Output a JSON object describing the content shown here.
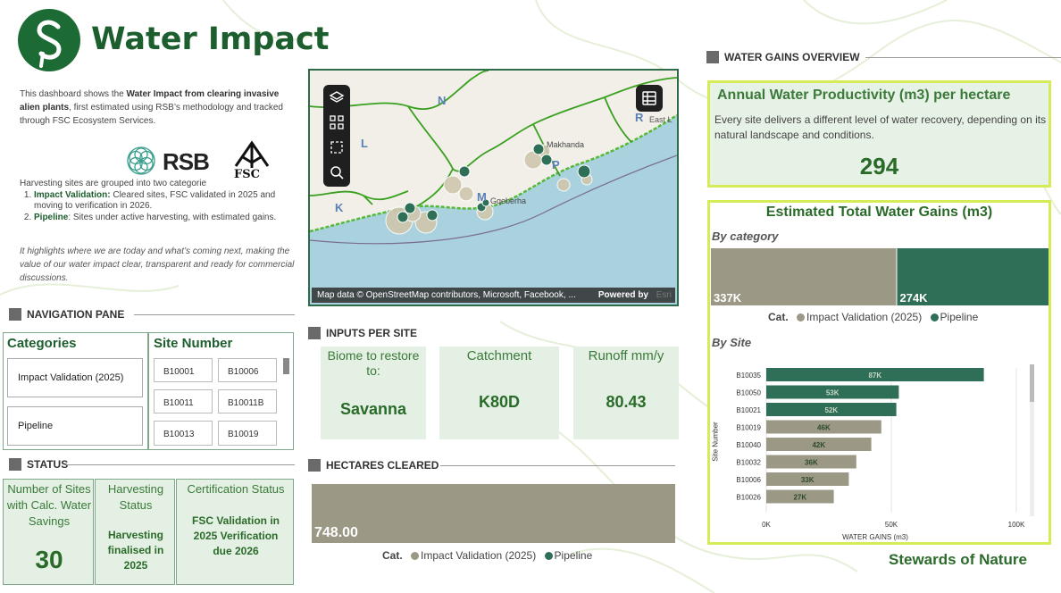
{
  "header": {
    "title": "Water Impact",
    "logo_icon": "leaf-s-logo-icon"
  },
  "intro": {
    "p1_a": "This dashboard shows the ",
    "p1_b": "Water Impact from clearing invasive alien plants",
    "p1_c": ", first estimated using RSB’s methodology and tracked through FSC Ecosystem Services.",
    "rsb_label": "RSB",
    "fsc_label": "FSC",
    "harvest_intro": "Harvesting sites are grouped into two categorie",
    "item1_bold": "Impact Validation:",
    "item1_text": " Cleared sites, FSC validated in 2025 and moving to verification in 2026.",
    "item2_bold": "Pipeline",
    "item2_text": ": Sites under active harvesting, with estimated gains.",
    "closing": "It highlights where we are today and what’s coming next, making the value of our water impact clear, transparent and ready for commercial discussions."
  },
  "nav": {
    "section_title": "NAVIGATION PANE",
    "categories_title": "Categories",
    "categories": [
      "Impact Validation (2025)",
      "Pipeline"
    ],
    "sites_title": "Site Number",
    "sites": [
      "B10001",
      "B10006",
      "B10011",
      "B10011B",
      "B10013",
      "B10019"
    ]
  },
  "status": {
    "section_title": "STATUS",
    "card1_label": "Number of Sites with Calc. Water Savings",
    "card1_value": "30",
    "card2_label": "Harvesting Status",
    "card2_value": "Harvesting finalised in 2025",
    "card3_label": "Certification Status",
    "card3_value": "FSC Validation in 2025 Verification due 2026"
  },
  "map": {
    "attribution": "Map data © OpenStreetMap contributors, Microsoft, Facebook, ...",
    "powered_by": "Powered by",
    "esri": "Esri",
    "place_labels": [
      "N",
      "L",
      "K",
      "M",
      "P",
      "R",
      "East L",
      "Makhanda",
      "Gqeberha"
    ]
  },
  "inputs": {
    "section_title": "INPUTS PER SITE",
    "biome_label": "Biome to restore to:",
    "biome_value": "Savanna",
    "catchment_label": "Catchment",
    "catchment_value": "K80D",
    "runoff_label": "Runoff mm/y",
    "runoff_value": "80.43"
  },
  "hectares": {
    "section_title": "HECTARES CLEARED",
    "value": "748.00",
    "legend_cat": "Cat.",
    "legend_items": [
      "Impact Validation (2025)",
      "Pipeline"
    ]
  },
  "water_gains": {
    "section_title": "WATER GAINS OVERVIEW",
    "productivity_title": "Annual Water Productivity (m3) per hectare",
    "productivity_desc": "Every site delivers a different level of water recovery, depending on its natural landscape and conditions.",
    "productivity_value": "294",
    "total_title": "Estimated Total Water Gains (m3)",
    "by_category": "By category",
    "by_site": "By Site",
    "legend_cat": "Cat.",
    "legend_items": [
      "Impact Validation (2025)",
      "Pipeline"
    ],
    "y_axis_title": "Site Number",
    "x_axis_title": "WATER GAINS (m3)"
  },
  "colors": {
    "impact_validation": "#9c9886",
    "pipeline": "#2f6f58",
    "accent_green": "#1c5e2e",
    "lime": "#d6ec57"
  },
  "footer": {
    "brand": "Stewards of Nature"
  },
  "chart_data": [
    {
      "type": "bar",
      "title": "By category",
      "categories": [
        "Impact Validation (2025)",
        "Pipeline"
      ],
      "values": [
        337000,
        274000
      ],
      "data_labels": [
        "337K",
        "274K"
      ]
    },
    {
      "type": "bar",
      "title": "By Site",
      "orientation": "horizontal",
      "categories": [
        "B10035",
        "B10050",
        "B10021",
        "B10019",
        "B10040",
        "B10032",
        "B10006",
        "B10026"
      ],
      "values": [
        87000,
        53000,
        52000,
        46000,
        42000,
        36000,
        33000,
        27000
      ],
      "data_labels": [
        "87K",
        "53K",
        "52K",
        "46K",
        "42K",
        "36K",
        "33K",
        "27K"
      ],
      "series_category": [
        "Pipeline",
        "Pipeline",
        "Pipeline",
        "Impact Validation (2025)",
        "Impact Validation (2025)",
        "Impact Validation (2025)",
        "Impact Validation (2025)",
        "Impact Validation (2025)"
      ],
      "xlabel": "WATER GAINS (m3)",
      "ylabel": "Site Number",
      "xlim": [
        0,
        100000
      ],
      "x_ticks": [
        "0K",
        "50K",
        "100K"
      ]
    },
    {
      "type": "bar",
      "title": "HECTARES CLEARED",
      "categories": [
        "Impact Validation (2025)"
      ],
      "values": [
        748.0
      ],
      "data_labels": [
        "748.00"
      ]
    }
  ]
}
